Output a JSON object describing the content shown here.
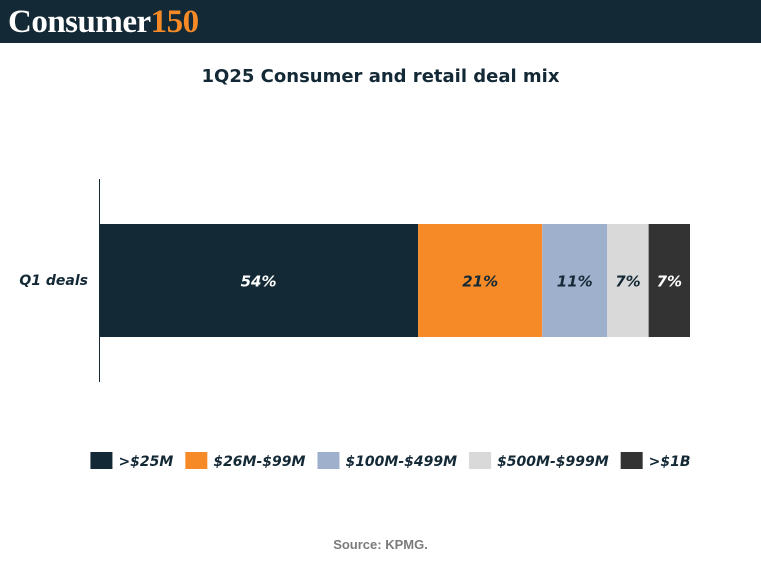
{
  "header": {
    "logo_word": "Consumer",
    "logo_number": "150",
    "logo_word_color": "#ffffff",
    "logo_number_color": "#f58a26",
    "background_color": "#142936"
  },
  "source": "Source: KPMG.",
  "chart_data": {
    "type": "bar",
    "orientation": "horizontal",
    "stacked": true,
    "title": "1Q25 Consumer and retail deal mix",
    "categories": [
      "Q1 deals"
    ],
    "unit": "%",
    "series": [
      {
        "name": ">$25M",
        "values": [
          54
        ],
        "label": "54%",
        "color": "#142936",
        "label_color": "#ffffff"
      },
      {
        "name": "$26M-$99M",
        "values": [
          21
        ],
        "label": "21%",
        "color": "#f58a26",
        "label_color": "#142936"
      },
      {
        "name": "$100M-$499M",
        "values": [
          11
        ],
        "label": "11%",
        "color": "#9fb0cc",
        "label_color": "#142936"
      },
      {
        "name": "$500M-$999M",
        "values": [
          7
        ],
        "label": "7%",
        "color": "#d9d9d9",
        "label_color": "#142936"
      },
      {
        "name": ">$1B",
        "values": [
          7
        ],
        "label": "7%",
        "color": "#333333",
        "label_color": "#ffffff"
      }
    ],
    "xlim": [
      0,
      100
    ],
    "grid": false,
    "legend": "bottom"
  }
}
